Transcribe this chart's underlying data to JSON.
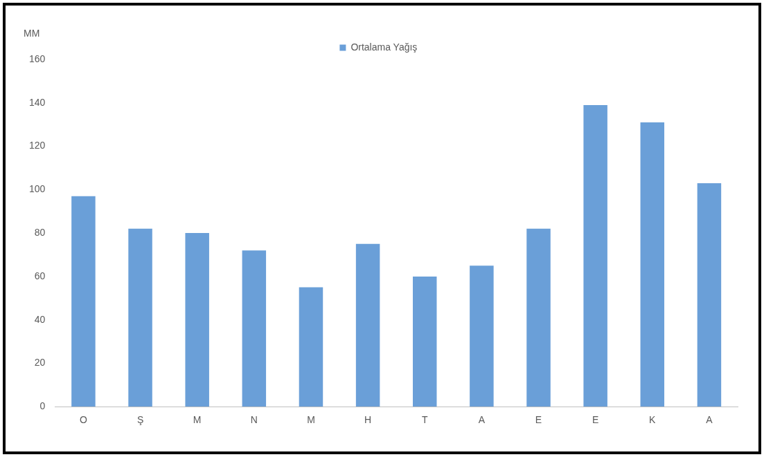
{
  "chart_data": {
    "type": "bar",
    "ylabel": "MM",
    "categories": [
      "O",
      "Ş",
      "M",
      "N",
      "M",
      "H",
      "T",
      "A",
      "E",
      "E",
      "K",
      "A"
    ],
    "series": [
      {
        "name": "Ortalama Yağış",
        "color": "#6a9fd8",
        "values": [
          97,
          82,
          80,
          72,
          55,
          75,
          60,
          65,
          82,
          139,
          131,
          103
        ]
      }
    ],
    "ylim": [
      0,
      160
    ],
    "yticks": [
      0,
      20,
      40,
      60,
      80,
      100,
      120,
      140,
      160
    ],
    "grid": false,
    "legend": "top"
  }
}
